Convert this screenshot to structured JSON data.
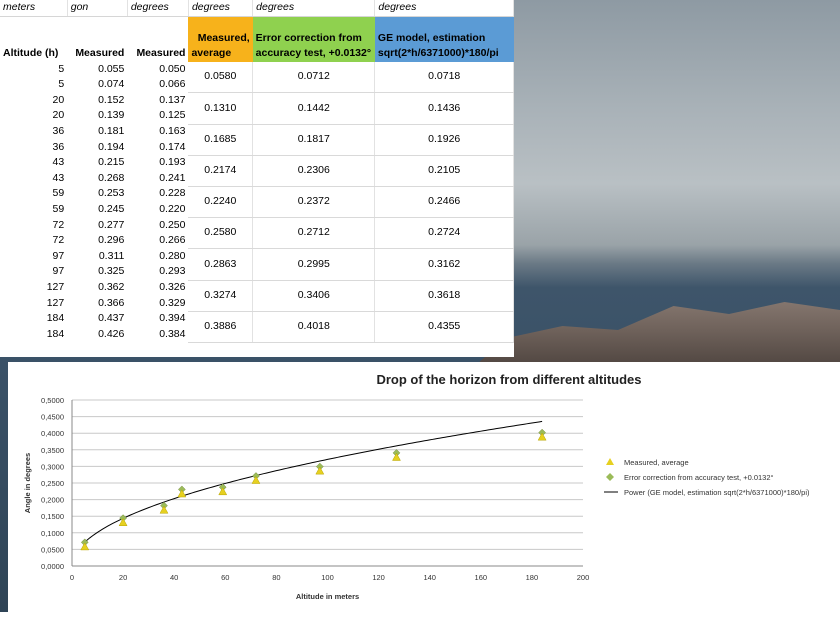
{
  "table": {
    "units": [
      "meters",
      "gon",
      "degrees",
      "degrees",
      "degrees",
      "degrees"
    ],
    "headers": {
      "altitude": "Altitude (h)",
      "measured_gon": "Measured",
      "measured_deg": "Measured",
      "avg_line1": "Measured,",
      "avg_line2": "average",
      "err_line1": "Error correction from",
      "err_line2": "accuracy test, +0.0132°",
      "ge_line1": "GE model, estimation",
      "ge_line2": "sqrt(2*h/6371000)*180/pi"
    },
    "rows": [
      {
        "h": "5",
        "gon": "0.055",
        "deg": "0.050"
      },
      {
        "h": "5",
        "gon": "0.074",
        "deg": "0.066"
      },
      {
        "h": "20",
        "gon": "0.152",
        "deg": "0.137"
      },
      {
        "h": "20",
        "gon": "0.139",
        "deg": "0.125"
      },
      {
        "h": "36",
        "gon": "0.181",
        "deg": "0.163"
      },
      {
        "h": "36",
        "gon": "0.194",
        "deg": "0.174"
      },
      {
        "h": "43",
        "gon": "0.215",
        "deg": "0.193"
      },
      {
        "h": "43",
        "gon": "0.268",
        "deg": "0.241"
      },
      {
        "h": "59",
        "gon": "0.253",
        "deg": "0.228"
      },
      {
        "h": "59",
        "gon": "0.245",
        "deg": "0.220"
      },
      {
        "h": "72",
        "gon": "0.277",
        "deg": "0.250"
      },
      {
        "h": "72",
        "gon": "0.296",
        "deg": "0.266"
      },
      {
        "h": "97",
        "gon": "0.311",
        "deg": "0.280"
      },
      {
        "h": "97",
        "gon": "0.325",
        "deg": "0.293"
      },
      {
        "h": "127",
        "gon": "0.362",
        "deg": "0.326"
      },
      {
        "h": "127",
        "gon": "0.366",
        "deg": "0.329"
      },
      {
        "h": "184",
        "gon": "0.437",
        "deg": "0.394"
      },
      {
        "h": "184",
        "gon": "0.426",
        "deg": "0.384"
      }
    ],
    "groups": [
      {
        "avg": "0.0580",
        "err": "0.0712",
        "ge": "0.0718"
      },
      {
        "avg": "0.1310",
        "err": "0.1442",
        "ge": "0.1436"
      },
      {
        "avg": "0.1685",
        "err": "0.1817",
        "ge": "0.1926"
      },
      {
        "avg": "0.2174",
        "err": "0.2306",
        "ge": "0.2105"
      },
      {
        "avg": "0.2240",
        "err": "0.2372",
        "ge": "0.2466"
      },
      {
        "avg": "0.2580",
        "err": "0.2712",
        "ge": "0.2724"
      },
      {
        "avg": "0.2863",
        "err": "0.2995",
        "ge": "0.3162"
      },
      {
        "avg": "0.3274",
        "err": "0.3406",
        "ge": "0.3618"
      },
      {
        "avg": "0.3886",
        "err": "0.4018",
        "ge": "0.4355"
      }
    ]
  },
  "chart_data": {
    "type": "scatter",
    "title": "Drop of the horizon from different altitudes",
    "xlabel": "Altitude in meters",
    "ylabel": "Angle in degrees",
    "xlim": [
      0,
      200
    ],
    "ylim": [
      0,
      0.5
    ],
    "x_ticks": [
      "0",
      "20",
      "40",
      "60",
      "80",
      "100",
      "120",
      "140",
      "160",
      "180",
      "200"
    ],
    "y_ticks": [
      "0,0000",
      "0,0500",
      "0,1000",
      "0,1500",
      "0,2000",
      "0,2500",
      "0,3000",
      "0,3500",
      "0,4000",
      "0,4500",
      "0,5000"
    ],
    "grid": "horizontal",
    "legend_position": "right",
    "series": [
      {
        "name": "Measured, average",
        "marker": "triangle",
        "color": "#e6d020",
        "x": [
          5,
          20,
          36,
          43,
          59,
          72,
          97,
          127,
          184
        ],
        "y": [
          0.058,
          0.131,
          0.1685,
          0.2174,
          0.224,
          0.258,
          0.2863,
          0.3274,
          0.3886
        ]
      },
      {
        "name": "Error correction from accuracy test, +0.0132°",
        "marker": "diamond",
        "color": "#9bbb59",
        "x": [
          5,
          20,
          36,
          43,
          59,
          72,
          97,
          127,
          184
        ],
        "y": [
          0.0712,
          0.1442,
          0.1817,
          0.2306,
          0.2372,
          0.2712,
          0.2995,
          0.3406,
          0.4018
        ]
      },
      {
        "name": "Power (GE model, estimation sqrt(2*h/6371000)*180/pi)",
        "marker": "line",
        "color": "#000000",
        "x": [
          5,
          20,
          36,
          43,
          59,
          72,
          97,
          127,
          184
        ],
        "y": [
          0.0718,
          0.1436,
          0.1926,
          0.2105,
          0.2466,
          0.2724,
          0.3162,
          0.3618,
          0.4355
        ]
      }
    ]
  }
}
